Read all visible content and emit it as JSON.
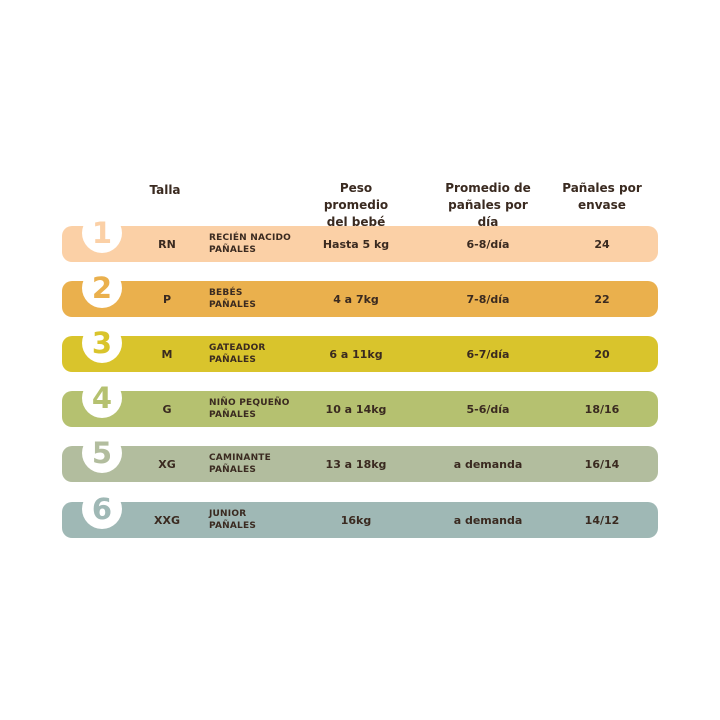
{
  "headers": {
    "size": "Talla",
    "weight": "Peso promedio\ndel bebé",
    "per_day": "Promedio de\npañales por día",
    "per_pack": "Pañales por\nenvase"
  },
  "rows": [
    {
      "number": "1",
      "size": "RN",
      "name_line1": "RECIÉN NACIDO",
      "name_line2": "PAÑALES",
      "weight": "Hasta 5 kg",
      "per_day": "6-8/día",
      "per_pack": "24",
      "color": "#fbd0a6",
      "number_color": "#fbd0a6"
    },
    {
      "number": "2",
      "size": "P",
      "name_line1": "BEBÉS",
      "name_line2": "PAÑALES",
      "weight": "4 a 7kg",
      "per_day": "7-8/día",
      "per_pack": "22",
      "color": "#eab04d",
      "number_color": "#eab04d"
    },
    {
      "number": "3",
      "size": "M",
      "name_line1": "GATEADOR",
      "name_line2": "PAÑALES",
      "weight": "6 a 11kg",
      "per_day": "6-7/día",
      "per_pack": "20",
      "color": "#d9c42c",
      "number_color": "#d9c42c"
    },
    {
      "number": "4",
      "size": "G",
      "name_line1": "NIÑO PEQUEÑO",
      "name_line2": "PAÑALES",
      "weight": "10 a 14kg",
      "per_day": "5-6/día",
      "per_pack": "18/16",
      "color": "#b5c170",
      "number_color": "#b5c170"
    },
    {
      "number": "5",
      "size": "XG",
      "name_line1": "CAMINANTE",
      "name_line2": "PAÑALES",
      "weight": "13 a 18kg",
      "per_day": "a demanda",
      "per_pack": "16/14",
      "color": "#b2bd9e",
      "number_color": "#b2bd9e"
    },
    {
      "number": "6",
      "size": "XXG",
      "name_line1": "JUNIOR",
      "name_line2": "PAÑALES",
      "weight": "16kg",
      "per_day": "a demanda",
      "per_pack": "14/12",
      "color": "#9fb8b5",
      "number_color": "#9fb8b5"
    }
  ]
}
